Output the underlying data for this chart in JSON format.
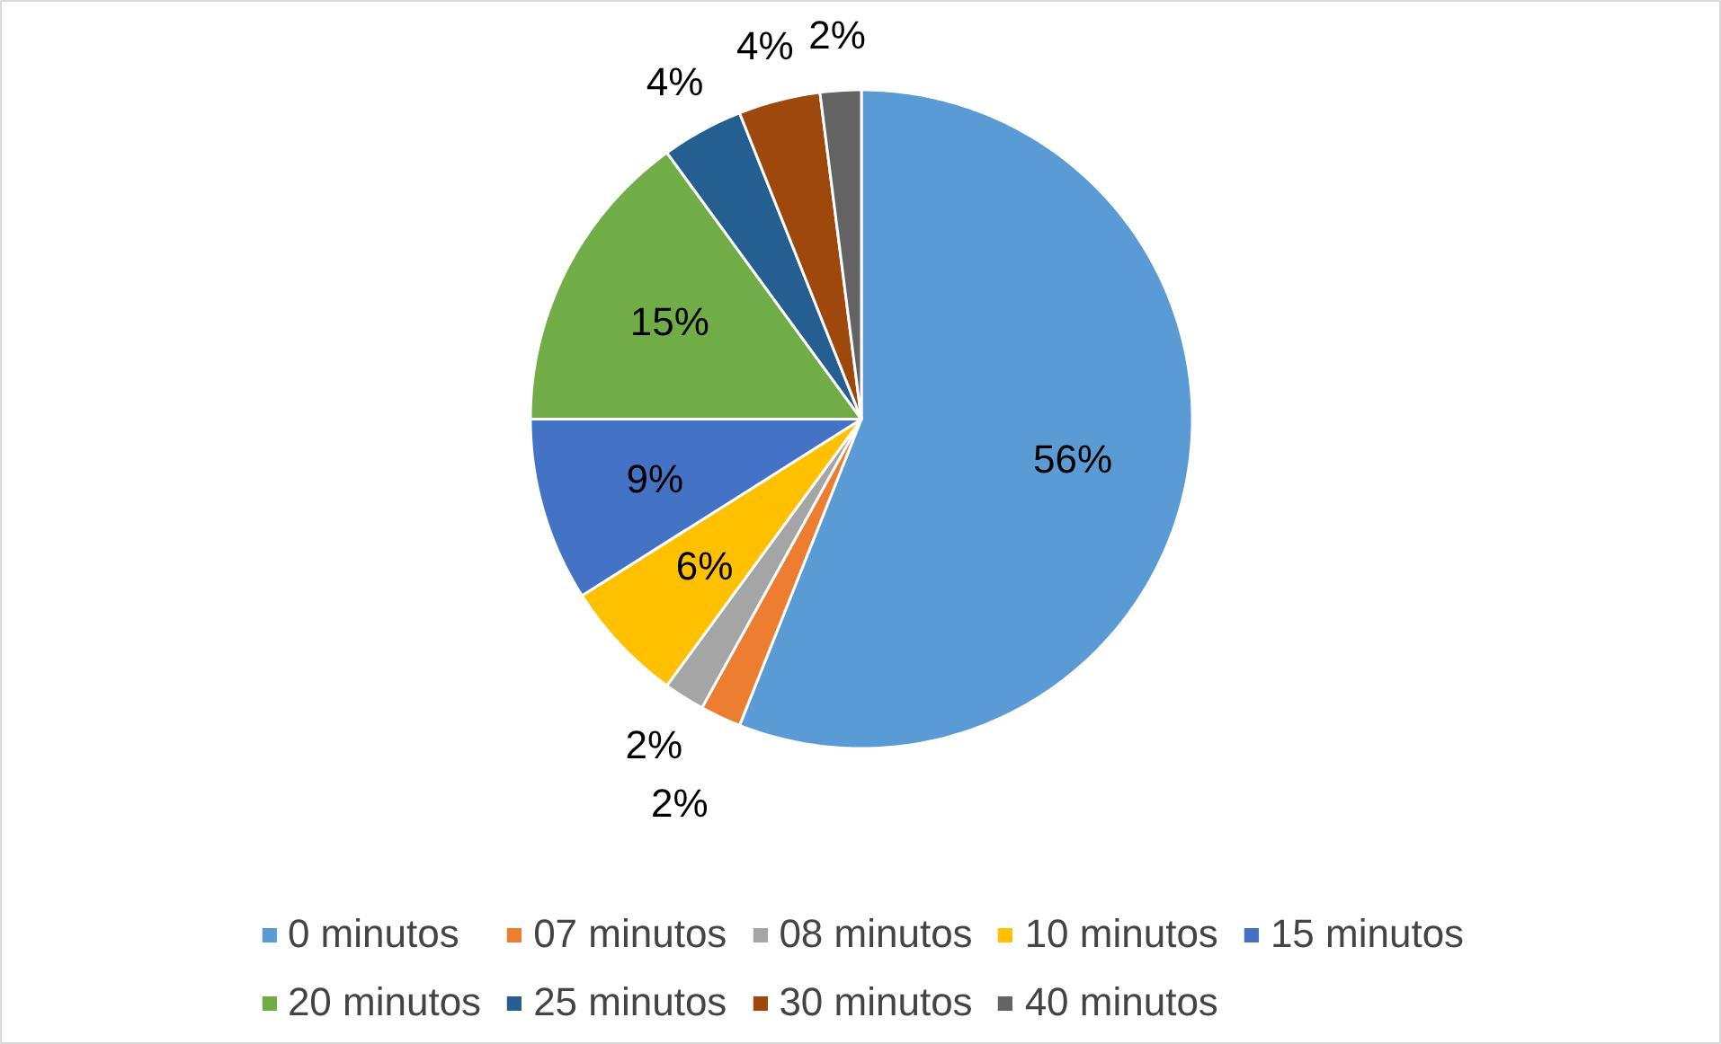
{
  "chart_data": {
    "type": "pie",
    "categories": [
      "0 minutos",
      "07 minutos",
      "08 minutos",
      "10 minutos",
      "15 minutos",
      "20 minutos",
      "25 minutos",
      "30 minutos",
      "40 minutos"
    ],
    "values": [
      56,
      2,
      2,
      6,
      9,
      15,
      4,
      4,
      2
    ],
    "value_labels": [
      "56%",
      "2%",
      "2%",
      "6%",
      "9%",
      "15%",
      "4%",
      "4%",
      "2%"
    ],
    "colors": [
      "#5b9bd5",
      "#ed7d31",
      "#a5a5a5",
      "#ffc000",
      "#4472c4",
      "#70ad47",
      "#255e91",
      "#9e480e",
      "#636363"
    ],
    "legend": "bottom"
  }
}
